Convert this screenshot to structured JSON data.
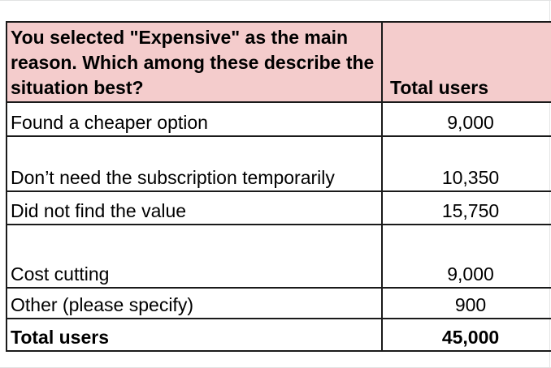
{
  "table": {
    "header": {
      "question": "You selected \"Expensive\" as the main reason. Which among these describe the situation best?",
      "total_label": "Total users",
      "background": "#f4cccc"
    },
    "rows": [
      {
        "reason": "Found a cheaper option",
        "users": "9,000"
      },
      {
        "reason": "Don’t need the subscription temporarily",
        "users": "10,350"
      },
      {
        "reason": "Did not find the value",
        "users": "15,750"
      },
      {
        "reason": "Cost cutting",
        "users": "9,000"
      },
      {
        "reason": "Other (please specify)",
        "users": "900"
      }
    ],
    "total": {
      "label": "Total users",
      "users": "45,000"
    }
  }
}
